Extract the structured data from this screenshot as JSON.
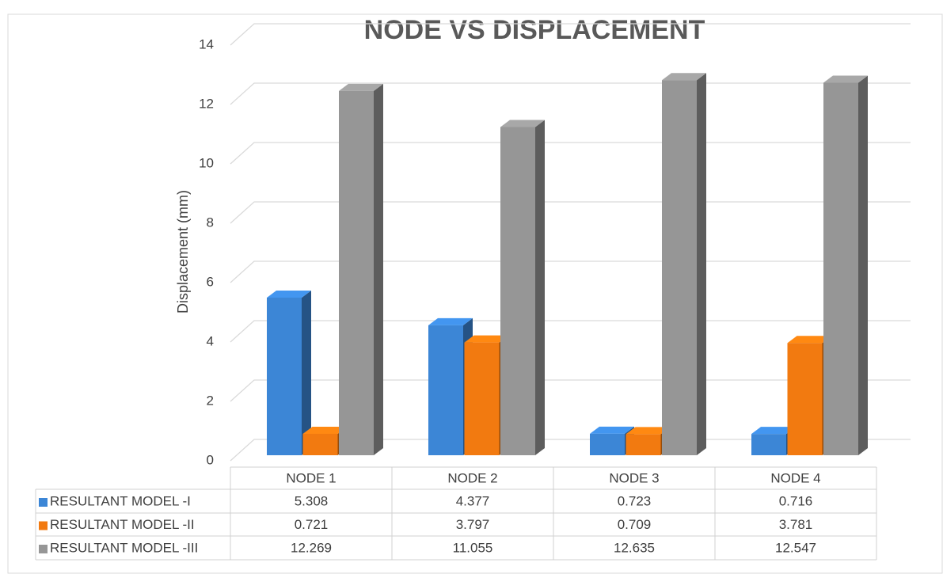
{
  "chart_data": {
    "type": "bar3d",
    "title": "NODE VS DISPLACEMENT",
    "y_label": "Displacement (mm)",
    "categories": [
      "NODE 1",
      "NODE 2",
      "NODE 3",
      "NODE 4"
    ],
    "series": [
      {
        "name": "RESULTANT MODEL -I",
        "color": "#3c86d6",
        "values": [
          5.308,
          4.377,
          0.723,
          0.716
        ]
      },
      {
        "name": "RESULTANT MODEL -II",
        "color": "#f27a10",
        "values": [
          0.721,
          3.797,
          0.709,
          3.781
        ]
      },
      {
        "name": "RESULTANT MODEL -III",
        "color": "#969696",
        "values": [
          12.269,
          11.055,
          12.635,
          12.547
        ]
      }
    ],
    "ylim": [
      0,
      14
    ],
    "yticks": [
      0,
      2,
      4,
      6,
      8,
      10,
      12,
      14
    ],
    "grid": true,
    "data_table": true
  }
}
